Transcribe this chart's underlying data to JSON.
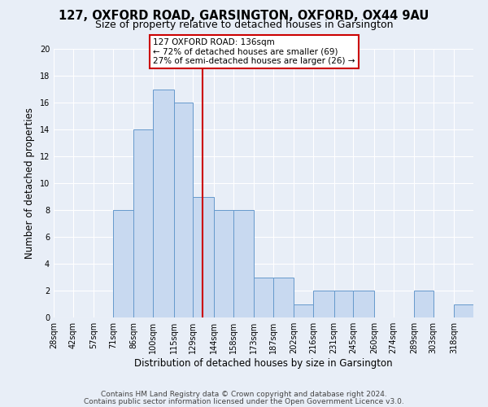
{
  "title": "127, OXFORD ROAD, GARSINGTON, OXFORD, OX44 9AU",
  "subtitle": "Size of property relative to detached houses in Garsington",
  "xlabel": "Distribution of detached houses by size in Garsington",
  "ylabel": "Number of detached properties",
  "bin_labels": [
    "28sqm",
    "42sqm",
    "57sqm",
    "71sqm",
    "86sqm",
    "100sqm",
    "115sqm",
    "129sqm",
    "144sqm",
    "158sqm",
    "173sqm",
    "187sqm",
    "202sqm",
    "216sqm",
    "231sqm",
    "245sqm",
    "260sqm",
    "274sqm",
    "289sqm",
    "303sqm",
    "318sqm"
  ],
  "bin_edges": [
    28,
    42,
    57,
    71,
    86,
    100,
    115,
    129,
    144,
    158,
    173,
    187,
    202,
    216,
    231,
    245,
    260,
    274,
    289,
    303,
    318,
    332
  ],
  "counts": [
    0,
    0,
    0,
    8,
    14,
    17,
    16,
    9,
    8,
    8,
    3,
    3,
    1,
    2,
    2,
    2,
    0,
    0,
    2,
    0,
    1
  ],
  "property_size": 136,
  "ylim": [
    0,
    20
  ],
  "yticks": [
    0,
    2,
    4,
    6,
    8,
    10,
    12,
    14,
    16,
    18,
    20
  ],
  "bar_color": "#c8d9f0",
  "bar_edge_color": "#6699cc",
  "line_color": "#cc0000",
  "annotation_line1": "127 OXFORD ROAD: 136sqm",
  "annotation_line2": "← 72% of detached houses are smaller (69)",
  "annotation_line3": "27% of semi-detached houses are larger (26) →",
  "annotation_box_color": "#ffffff",
  "annotation_box_edge": "#cc0000",
  "footer1": "Contains HM Land Registry data © Crown copyright and database right 2024.",
  "footer2": "Contains public sector information licensed under the Open Government Licence v3.0.",
  "background_color": "#e8eef7",
  "grid_color": "#ffffff",
  "title_fontsize": 10.5,
  "subtitle_fontsize": 9,
  "xlabel_fontsize": 8.5,
  "ylabel_fontsize": 8.5,
  "tick_fontsize": 7,
  "footer_fontsize": 6.5,
  "annotation_fontsize": 7.5
}
